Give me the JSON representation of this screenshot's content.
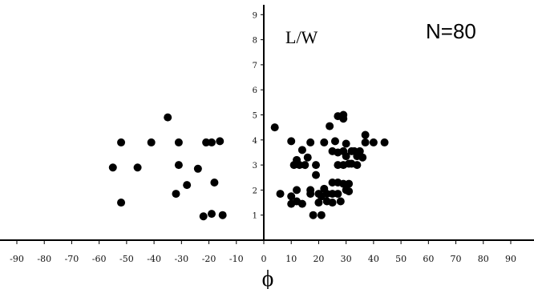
{
  "chart_data": {
    "type": "scatter",
    "title": "",
    "xlabel": "ϕ",
    "ylabel": "",
    "xlim": [
      -90,
      90
    ],
    "ylim": [
      0,
      9
    ],
    "x_ticks": [
      -90,
      -80,
      -70,
      -60,
      -50,
      -40,
      -30,
      -20,
      -10,
      0,
      10,
      20,
      30,
      40,
      50,
      60,
      70,
      80,
      90
    ],
    "y_ticks": [
      1,
      2,
      3,
      4,
      5,
      6,
      7,
      8,
      9
    ],
    "grid": false,
    "annotations": [
      {
        "id": "ratio_label",
        "text": "L/W"
      },
      {
        "id": "count_label",
        "text": "N=80"
      }
    ],
    "points": [
      [
        -52,
        3.9
      ],
      [
        -55,
        2.9
      ],
      [
        -52,
        1.5
      ],
      [
        -46,
        2.9
      ],
      [
        -41,
        3.9
      ],
      [
        -35,
        4.9
      ],
      [
        -31,
        3.9
      ],
      [
        -31,
        3.0
      ],
      [
        -32,
        1.85
      ],
      [
        -28,
        2.2
      ],
      [
        -24,
        2.85
      ],
      [
        -22,
        0.95
      ],
      [
        -21,
        3.9
      ],
      [
        -19,
        3.9
      ],
      [
        -16,
        3.95
      ],
      [
        -18,
        2.3
      ],
      [
        -19,
        1.05
      ],
      [
        -15,
        1.0
      ],
      [
        4,
        4.5
      ],
      [
        10,
        3.95
      ],
      [
        6,
        1.85
      ],
      [
        10,
        1.75
      ],
      [
        10,
        1.45
      ],
      [
        11,
        3.0
      ],
      [
        12,
        3.2
      ],
      [
        13,
        3.0
      ],
      [
        12,
        2.0
      ],
      [
        12,
        1.55
      ],
      [
        14,
        3.6
      ],
      [
        14,
        1.45
      ],
      [
        15,
        3.0
      ],
      [
        16,
        3.3
      ],
      [
        17,
        2.0
      ],
      [
        17,
        1.85
      ],
      [
        17,
        3.9
      ],
      [
        18,
        1.0
      ],
      [
        19,
        3.0
      ],
      [
        19,
        2.6
      ],
      [
        20,
        1.85
      ],
      [
        20,
        1.5
      ],
      [
        21,
        1.0
      ],
      [
        21,
        1.75
      ],
      [
        22,
        3.9
      ],
      [
        22,
        2.05
      ],
      [
        23,
        1.85
      ],
      [
        23,
        1.55
      ],
      [
        24,
        4.55
      ],
      [
        25,
        3.55
      ],
      [
        25,
        2.3
      ],
      [
        25,
        1.85
      ],
      [
        25,
        1.5
      ],
      [
        26,
        3.95
      ],
      [
        27,
        4.95
      ],
      [
        27,
        3.5
      ],
      [
        27,
        3.0
      ],
      [
        27,
        2.3
      ],
      [
        27,
        1.85
      ],
      [
        28,
        1.55
      ],
      [
        29,
        3.55
      ],
      [
        29,
        3.0
      ],
      [
        29,
        2.25
      ],
      [
        29,
        5.0
      ],
      [
        29,
        4.85
      ],
      [
        30,
        3.85
      ],
      [
        30,
        3.35
      ],
      [
        30,
        2.0
      ],
      [
        31,
        3.05
      ],
      [
        31,
        2.25
      ],
      [
        31,
        1.95
      ],
      [
        32,
        3.55
      ],
      [
        32,
        3.05
      ],
      [
        33,
        3.55
      ],
      [
        34,
        3.0
      ],
      [
        34,
        3.35
      ],
      [
        35,
        3.55
      ],
      [
        36,
        3.3
      ],
      [
        37,
        4.2
      ],
      [
        37,
        3.9
      ],
      [
        40,
        3.9
      ],
      [
        44,
        3.9
      ]
    ]
  }
}
